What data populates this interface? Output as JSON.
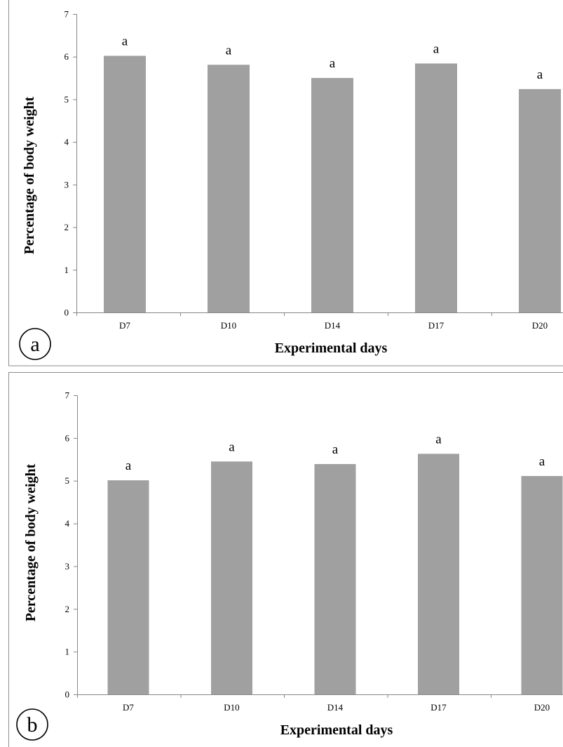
{
  "chart_data": [
    {
      "panel_label": "a",
      "type": "bar",
      "categories": [
        "D7",
        "D10",
        "D14",
        "D17",
        "D20"
      ],
      "values": [
        6.02,
        5.81,
        5.5,
        5.84,
        5.24
      ],
      "data_labels": [
        "a",
        "a",
        "a",
        "a",
        "a"
      ],
      "xlabel": "Experimental days",
      "ylabel": "Percentage of body weight",
      "ylim": [
        0,
        7
      ],
      "yticks": [
        "0",
        "1",
        "2",
        "3",
        "4",
        "5",
        "6",
        "7"
      ],
      "bar_color": "#a0a0a0",
      "grid": false
    },
    {
      "panel_label": "b",
      "type": "bar",
      "categories": [
        "D7",
        "D10",
        "D14",
        "D17",
        "D20"
      ],
      "values": [
        5.01,
        5.45,
        5.39,
        5.63,
        5.11
      ],
      "data_labels": [
        "a",
        "a",
        "a",
        "a",
        "a"
      ],
      "xlabel": "Experimental days",
      "ylabel": "Percentage of body weight",
      "ylim": [
        0,
        7
      ],
      "yticks": [
        "0",
        "1",
        "2",
        "3",
        "4",
        "5",
        "6",
        "7"
      ],
      "bar_color": "#a0a0a0",
      "grid": false
    }
  ]
}
